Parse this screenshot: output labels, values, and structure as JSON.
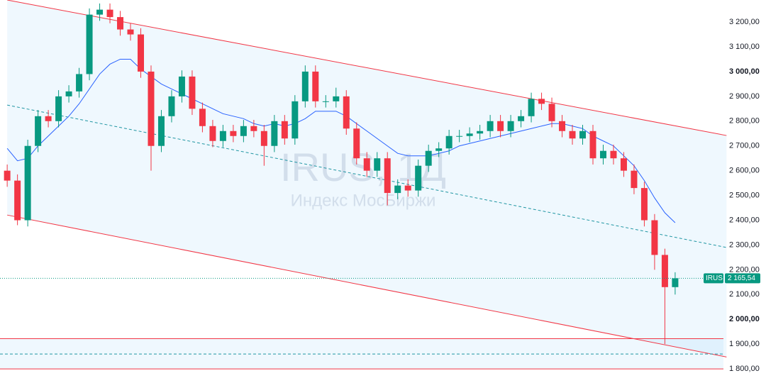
{
  "chart_data": {
    "type": "candlestick",
    "ticker": "IRUS",
    "watermark_title": "IRUS, 1Д",
    "watermark_subtitle": "Индекс МосБиржи",
    "up_color": "#089981",
    "down_color": "#f23645",
    "ma_color": "#2962ff",
    "channel_color": "#f23645",
    "xlim": [
      -0.7,
      69.7
    ],
    "ylim": [
      1743,
      3289
    ],
    "yticks": [
      {
        "value": 1800,
        "label": "1 800,00"
      },
      {
        "value": 1900,
        "label": "1 900,00"
      },
      {
        "value": 2000,
        "label": "2 000,00"
      },
      {
        "value": 2100,
        "label": "2 100,00"
      },
      {
        "value": 2200,
        "label": "2 200,00"
      },
      {
        "value": 2300,
        "label": "2 300,00"
      },
      {
        "value": 2400,
        "label": "2 400,00"
      },
      {
        "value": 2500,
        "label": "2 500,00"
      },
      {
        "value": 2600,
        "label": "2 600,00"
      },
      {
        "value": 2700,
        "label": "2 700,00"
      },
      {
        "value": 2800,
        "label": "2 800,00"
      },
      {
        "value": 2900,
        "label": "2 900,00"
      },
      {
        "value": 3000,
        "label": "3 000,00"
      },
      {
        "value": 3100,
        "label": "3 100,00"
      },
      {
        "value": 3200,
        "label": "3 200,00"
      }
    ],
    "open": [
      2600,
      2560,
      2400,
      2700,
      2820,
      2800,
      2900,
      2920,
      2990,
      3230,
      3250,
      3220,
      3170,
      3150,
      3000,
      2700,
      2820,
      2900,
      2980,
      2850,
      2780,
      2720,
      2760,
      2740,
      2780,
      2760,
      2700,
      2800,
      2730,
      2880,
      3000,
      2880,
      2880,
      2900,
      2770,
      2650,
      2600,
      2650,
      2510,
      2540,
      2520,
      2620,
      2680,
      2690,
      2740,
      2740,
      2750,
      2760,
      2800,
      2760,
      2800,
      2820,
      2890,
      2870,
      2800,
      2760,
      2730,
      2760,
      2650,
      2680,
      2650,
      2600,
      2530,
      2400,
      2260,
      2130
    ],
    "high": [
      2625,
      2585,
      2725,
      2845,
      2845,
      2925,
      2945,
      3015,
      3255,
      3275,
      3275,
      3245,
      3195,
      3175,
      3025,
      2845,
      2925,
      3005,
      3005,
      2875,
      2805,
      2785,
      2785,
      2805,
      2805,
      2785,
      2825,
      2825,
      2905,
      3025,
      3025,
      2905,
      2935,
      2925,
      2795,
      2675,
      2675,
      2675,
      2565,
      2565,
      2645,
      2705,
      2715,
      2765,
      2765,
      2775,
      2785,
      2825,
      2825,
      2825,
      2845,
      2915,
      2915,
      2895,
      2825,
      2785,
      2785,
      2785,
      2705,
      2705,
      2675,
      2625,
      2555,
      2425,
      2285,
      2190
    ],
    "low": [
      2535,
      2380,
      2375,
      2675,
      2775,
      2775,
      2875,
      2895,
      2965,
      3205,
      3195,
      3145,
      3125,
      2975,
      2600,
      2675,
      2795,
      2875,
      2825,
      2755,
      2695,
      2695,
      2715,
      2715,
      2735,
      2620,
      2675,
      2705,
      2705,
      2855,
      2855,
      2855,
      2855,
      2745,
      2625,
      2575,
      2575,
      2460,
      2485,
      2495,
      2495,
      2595,
      2655,
      2665,
      2715,
      2715,
      2725,
      2735,
      2735,
      2735,
      2775,
      2795,
      2845,
      2775,
      2735,
      2705,
      2705,
      2625,
      2625,
      2625,
      2575,
      2505,
      2375,
      2200,
      1900,
      2100
    ],
    "close": [
      2560,
      2400,
      2700,
      2820,
      2800,
      2900,
      2920,
      2990,
      3230,
      3250,
      3220,
      3170,
      3150,
      3000,
      2700,
      2820,
      2900,
      2980,
      2850,
      2780,
      2720,
      2760,
      2740,
      2780,
      2760,
      2700,
      2800,
      2730,
      2880,
      3000,
      2880,
      2880,
      2900,
      2770,
      2650,
      2600,
      2650,
      2510,
      2540,
      2520,
      2620,
      2680,
      2690,
      2740,
      2740,
      2750,
      2760,
      2800,
      2760,
      2800,
      2820,
      2890,
      2870,
      2800,
      2760,
      2730,
      2760,
      2650,
      2680,
      2650,
      2600,
      2530,
      2400,
      2260,
      2130,
      2165.54
    ],
    "ma": [
      2690,
      2640,
      2650,
      2700,
      2740,
      2780,
      2820,
      2870,
      2930,
      2990,
      3030,
      3050,
      3050,
      3010,
      2980,
      2950,
      2930,
      2910,
      2890,
      2870,
      2850,
      2830,
      2820,
      2810,
      2790,
      2780,
      2790,
      2780,
      2790,
      2810,
      2840,
      2840,
      2840,
      2820,
      2790,
      2760,
      2730,
      2700,
      2670,
      2660,
      2660,
      2660,
      2670,
      2680,
      2700,
      2710,
      2720,
      2730,
      2740,
      2750,
      2760,
      2770,
      2780,
      2790,
      2790,
      2780,
      2770,
      2740,
      2720,
      2700,
      2660,
      2620,
      2560,
      2490,
      2430,
      2390
    ],
    "channel": {
      "x": [
        0,
        70
      ],
      "upper": [
        3289,
        2742
      ],
      "middle": [
        2865,
        2290
      ],
      "lower": [
        2421,
        1848
      ]
    },
    "levels": [
      1922,
      1800
    ],
    "dashed_level": 1860,
    "last_price": {
      "value": 2165.54,
      "label": "2 165,54"
    }
  }
}
